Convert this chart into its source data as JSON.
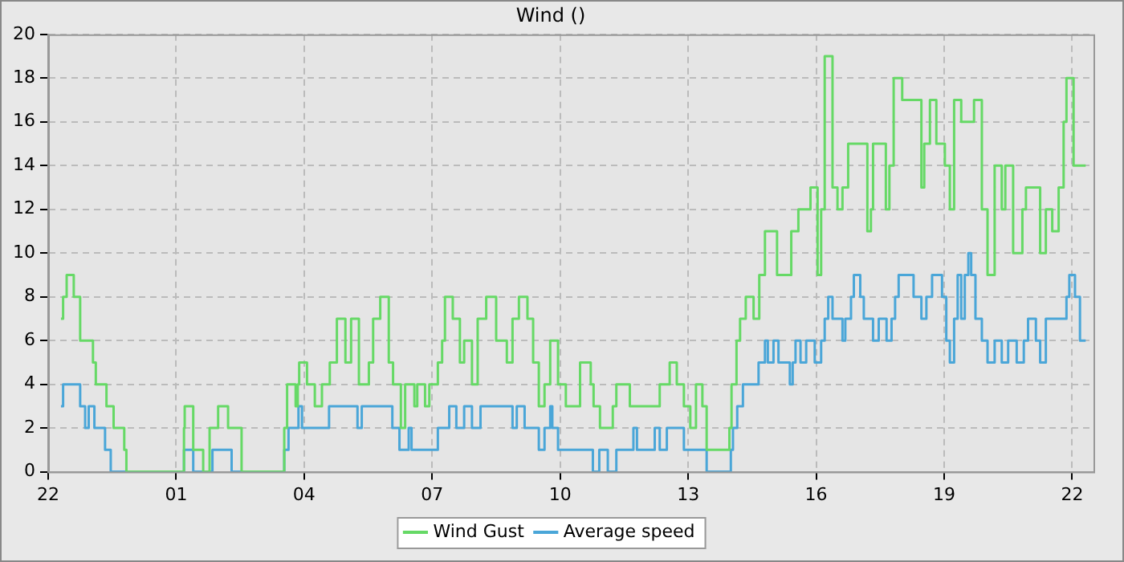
{
  "chart_data": {
    "type": "step",
    "title": "Wind ()",
    "xlim": [
      "--01-01T22:00",
      "--01-02T22:30"
    ],
    "ylim": [
      0,
      20
    ],
    "xticks": [
      {
        "value": "--01-01T22:00",
        "label": "22"
      },
      {
        "value": "--01-02T01:00",
        "label": "01"
      },
      {
        "value": "--01-02T04:00",
        "label": "04"
      },
      {
        "value": "--01-02T07:00",
        "label": "07"
      },
      {
        "value": "--01-02T10:00",
        "label": "10"
      },
      {
        "value": "--01-02T13:00",
        "label": "13"
      },
      {
        "value": "--01-02T16:00",
        "label": "16"
      },
      {
        "value": "--01-02T19:00",
        "label": "19"
      },
      {
        "value": "--01-02T22:00",
        "label": "22"
      }
    ],
    "yticks": [
      0,
      2,
      4,
      6,
      8,
      10,
      12,
      14,
      16,
      18,
      20
    ],
    "grid": true,
    "legend": "bottom",
    "line_style": "solid",
    "marker": "none",
    "series": [
      {
        "name": "Wind Gust",
        "color": "#66d966",
        "x": [
          "--01-01T22:18",
          "--01-01T22:21",
          "--01-01T22:26",
          "--01-01T22:36",
          "--01-01T22:45",
          "--01-01T23:03",
          "--01-01T23:07",
          "--01-01T23:22",
          "--01-01T23:32",
          "--01-01T23:47",
          "--01-01T23:50",
          "--01-02T01:11",
          "--01-02T01:12",
          "--01-02T01:24",
          "--01-02T01:38",
          "--01-02T01:47",
          "--01-02T01:59",
          "--01-02T02:13",
          "--01-02T02:32",
          "--01-02T03:32",
          "--01-02T03:36",
          "--01-02T03:48",
          "--01-02T03:51",
          "--01-02T03:53",
          "--01-02T04:04",
          "--01-02T04:15",
          "--01-02T04:25",
          "--01-02T04:36",
          "--01-02T04:46",
          "--01-02T04:58",
          "--01-02T05:06",
          "--01-02T05:17",
          "--01-02T05:31",
          "--01-02T05:37",
          "--01-02T05:47",
          "--01-02T05:59",
          "--01-02T06:05",
          "--01-02T06:16",
          "--01-02T06:22",
          "--01-02T06:35",
          "--01-02T06:39",
          "--01-02T06:50",
          "--01-02T06:56",
          "--01-02T07:08",
          "--01-02T07:14",
          "--01-02T07:18",
          "--01-02T07:29",
          "--01-02T07:39",
          "--01-02T07:45",
          "--01-02T07:56",
          "--01-02T08:04",
          "--01-02T08:16",
          "--01-02T08:30",
          "--01-02T08:45",
          "--01-02T08:53",
          "--01-02T09:02",
          "--01-02T09:14",
          "--01-02T09:22",
          "--01-02T09:30",
          "--01-02T09:38",
          "--01-02T09:46",
          "--01-02T09:57",
          "--01-02T10:08",
          "--01-02T10:28",
          "--01-02T10:43",
          "--01-02T10:47",
          "--01-02T10:56",
          "--01-02T11:14",
          "--01-02T11:19",
          "--01-02T11:22",
          "--01-02T11:38",
          "--01-02T11:48",
          "--01-02T12:20",
          "--01-02T12:34",
          "--01-02T12:44",
          "--01-02T12:54",
          "--01-02T13:03",
          "--01-02T13:11",
          "--01-02T13:20",
          "--01-02T13:26",
          "--01-02T13:58",
          "--01-02T14:01",
          "--01-02T14:08",
          "--01-02T14:13",
          "--01-02T14:21",
          "--01-02T14:32",
          "--01-02T14:40",
          "--01-02T14:48",
          "--01-02T15:05",
          "--01-02T15:25",
          "--01-02T15:35",
          "--01-02T15:52",
          "--01-02T16:02",
          "--01-02T16:07",
          "--01-02T16:12",
          "--01-02T16:23",
          "--01-02T16:30",
          "--01-02T16:37",
          "--01-02T16:45",
          "--01-02T17:12",
          "--01-02T17:17",
          "--01-02T17:20",
          "--01-02T17:38",
          "--01-02T17:43",
          "--01-02T17:49",
          "--01-02T18:01",
          "--01-02T18:28",
          "--01-02T18:32",
          "--01-02T18:40",
          "--01-02T18:49",
          "--01-02T19:01",
          "--01-02T19:08",
          "--01-02T19:14",
          "--01-02T19:24",
          "--01-02T19:42",
          "--01-02T19:53",
          "--01-02T20:01",
          "--01-02T20:11",
          "--01-02T20:21",
          "--01-02T20:26",
          "--01-02T20:37",
          "--01-02T20:50",
          "--01-02T20:55",
          "--01-02T21:15",
          "--01-02T21:23",
          "--01-02T21:32",
          "--01-02T21:41",
          "--01-02T21:48",
          "--01-02T21:52",
          "--01-02T22:02",
          "--01-02T22:19"
        ],
        "values": [
          7,
          8,
          9,
          8,
          6,
          5,
          4,
          3,
          2,
          1,
          0,
          2,
          3,
          1,
          0,
          2,
          3,
          2,
          0,
          2,
          4,
          3,
          4,
          5,
          4,
          3,
          4,
          5,
          7,
          5,
          7,
          4,
          5,
          7,
          8,
          5,
          4,
          2,
          4,
          3,
          4,
          3,
          4,
          5,
          6,
          8,
          7,
          5,
          6,
          4,
          7,
          8,
          6,
          5,
          7,
          8,
          7,
          5,
          3,
          4,
          6,
          4,
          3,
          5,
          4,
          3,
          2,
          3,
          4,
          4,
          3,
          3,
          4,
          5,
          4,
          3,
          2,
          4,
          3,
          1,
          2,
          4,
          6,
          7,
          8,
          7,
          9,
          11,
          9,
          11,
          12,
          13,
          9,
          12,
          19,
          13,
          12,
          13,
          15,
          11,
          12,
          15,
          12,
          14,
          18,
          17,
          13,
          15,
          17,
          15,
          14,
          12,
          17,
          16,
          17,
          12,
          9,
          14,
          12,
          14,
          10,
          12,
          13,
          10,
          12,
          11,
          13,
          16,
          18,
          14,
          14
        ]
      },
      {
        "name": "Average speed",
        "color": "#4aa6d8",
        "x": [
          "--01-01T22:18",
          "--01-01T22:21",
          "--01-01T22:45",
          "--01-01T22:52",
          "--01-01T22:57",
          "--01-01T23:05",
          "--01-01T23:20",
          "--01-01T23:28",
          "--01-02T01:11",
          "--01-02T01:24",
          "--01-02T01:51",
          "--01-02T02:18",
          "--01-02T03:32",
          "--01-02T03:38",
          "--01-02T03:52",
          "--01-02T03:57",
          "--01-02T04:35",
          "--01-02T05:15",
          "--01-02T05:21",
          "--01-02T06:04",
          "--01-02T06:14",
          "--01-02T06:27",
          "--01-02T06:31",
          "--01-02T07:08",
          "--01-02T07:24",
          "--01-02T07:34",
          "--01-02T07:45",
          "--01-02T07:56",
          "--01-02T08:08",
          "--01-02T08:53",
          "--01-02T08:59",
          "--01-02T09:10",
          "--01-02T09:30",
          "--01-02T09:38",
          "--01-02T09:46",
          "--01-02T09:49",
          "--01-02T09:57",
          "--01-02T10:46",
          "--01-02T10:55",
          "--01-02T11:07",
          "--01-02T11:19",
          "--01-02T11:43",
          "--01-02T11:48",
          "--01-02T12:13",
          "--01-02T12:20",
          "--01-02T12:30",
          "--01-02T12:36",
          "--01-02T12:54",
          "--01-02T13:26",
          "--01-02T14:00",
          "--01-02T14:03",
          "--01-02T14:09",
          "--01-02T14:17",
          "--01-02T14:39",
          "--01-02T14:48",
          "--01-02T14:52",
          "--01-02T15:00",
          "--01-02T15:07",
          "--01-02T15:23",
          "--01-02T15:27",
          "--01-02T15:31",
          "--01-02T15:38",
          "--01-02T15:46",
          "--01-02T15:58",
          "--01-02T16:07",
          "--01-02T16:12",
          "--01-02T16:17",
          "--01-02T16:23",
          "--01-02T16:37",
          "--01-02T16:41",
          "--01-02T16:49",
          "--01-02T16:53",
          "--01-02T17:02",
          "--01-02T17:07",
          "--01-02T17:20",
          "--01-02T17:28",
          "--01-02T17:39",
          "--01-02T17:46",
          "--01-02T17:51",
          "--01-02T17:56",
          "--01-02T18:17",
          "--01-02T18:28",
          "--01-02T18:35",
          "--01-02T18:43",
          "--01-02T18:57",
          "--01-02T19:03",
          "--01-02T19:08",
          "--01-02T19:14",
          "--01-02T19:19",
          "--01-02T19:24",
          "--01-02T19:29",
          "--01-02T19:34",
          "--01-02T19:38",
          "--01-02T19:44",
          "--01-02T19:53",
          "--01-02T20:01",
          "--01-02T20:11",
          "--01-02T20:21",
          "--01-02T20:30",
          "--01-02T20:42",
          "--01-02T20:52",
          "--01-02T20:58",
          "--01-02T21:09",
          "--01-02T21:15",
          "--01-02T21:23",
          "--01-02T21:52",
          "--01-02T21:56",
          "--01-02T22:04",
          "--01-02T22:11",
          "--01-02T22:19"
        ],
        "values": [
          3,
          4,
          3,
          2,
          3,
          2,
          1,
          0,
          1,
          0,
          1,
          0,
          1,
          2,
          3,
          2,
          3,
          2,
          3,
          2,
          1,
          2,
          1,
          2,
          3,
          2,
          3,
          2,
          3,
          2,
          3,
          2,
          1,
          2,
          3,
          2,
          1,
          0,
          1,
          0,
          1,
          2,
          1,
          2,
          1,
          2,
          2,
          1,
          0,
          1,
          2,
          3,
          4,
          5,
          6,
          5,
          6,
          5,
          4,
          5,
          6,
          5,
          6,
          5,
          6,
          7,
          8,
          7,
          6,
          7,
          8,
          9,
          8,
          7,
          6,
          7,
          6,
          7,
          8,
          9,
          8,
          7,
          8,
          9,
          8,
          6,
          5,
          7,
          9,
          7,
          9,
          10,
          9,
          7,
          6,
          5,
          6,
          5,
          6,
          5,
          6,
          7,
          6,
          5,
          7,
          8,
          9,
          8,
          6,
          6
        ]
      }
    ]
  }
}
